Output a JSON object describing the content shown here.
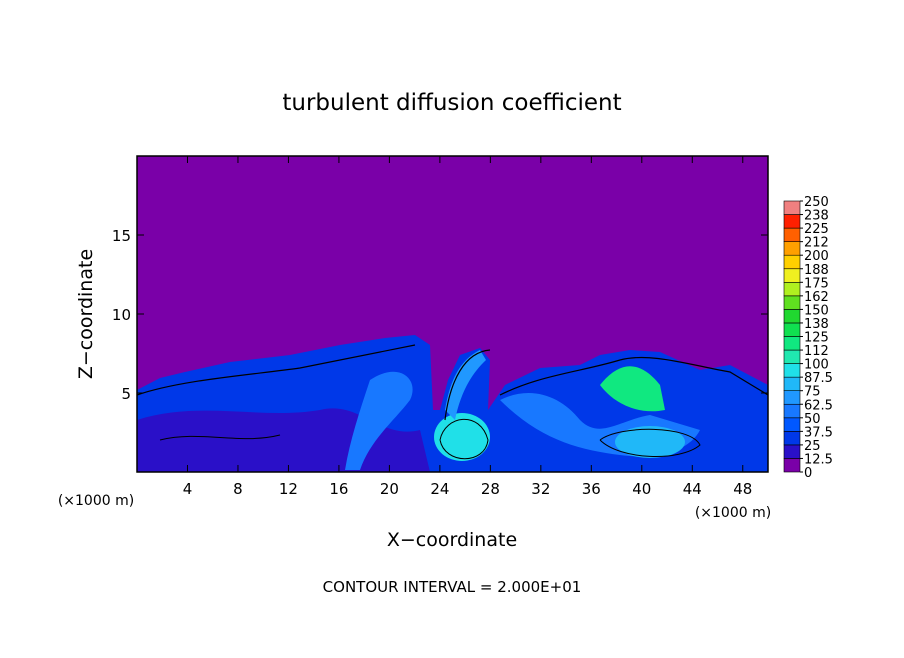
{
  "chart_data": {
    "type": "contour",
    "title": "turbulent diffusion coefficient",
    "xlabel": "X−coordinate",
    "ylabel": "Z−coordinate",
    "x_unit": "(×1000 m)",
    "y_unit": "(×1000 m)",
    "annotation": "CONTOUR INTERVAL = 2.000E+01",
    "xlim": [
      0,
      50
    ],
    "xticks": [
      4,
      8,
      12,
      16,
      20,
      24,
      28,
      32,
      36,
      40,
      44,
      48
    ],
    "ylim": [
      0,
      20
    ],
    "yticks": [
      5,
      10,
      15
    ],
    "colorbar": {
      "levels": [
        0,
        12.5,
        25,
        37.5,
        50,
        62.5,
        75,
        87.5,
        100,
        {
          "value": 112.5,
          "label": "112"
        },
        125,
        {
          "value": 137.5,
          "label": "138"
        },
        150,
        {
          "value": 162.5,
          "label": "162"
        },
        175,
        {
          "value": 187.5,
          "label": "188"
        },
        200,
        {
          "value": 212.5,
          "label": "212"
        },
        225,
        {
          "value": 237.5,
          "label": "238"
        },
        250
      ],
      "colors": [
        "#7a00a8",
        "#2a10c8",
        "#0038e8",
        "#0058ff",
        "#1878ff",
        "#2098ff",
        "#20b8f8",
        "#20e0e8",
        "#20e8b0",
        "#10e880",
        "#10e050",
        "#20d830",
        "#60e020",
        "#b0f020",
        "#f0f020",
        "#ffd000",
        "#ffa000",
        "#ff6000",
        "#ff2000",
        "#f08080"
      ]
    }
  }
}
